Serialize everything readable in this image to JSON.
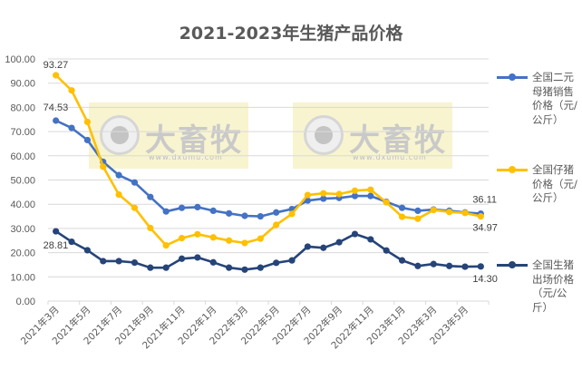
{
  "title": "2021-2023年生猪产品价格",
  "colors": {
    "sow": "#4472C4",
    "piglet": "#FFC000",
    "hog": "#264478",
    "grid": "#d9d9d9",
    "text": "#595959"
  },
  "watermark": {
    "brand": "大畜牧",
    "url": "www.dxumu.com"
  },
  "legend": [
    {
      "name": "全国二元母猪销售价格（元/公斤）",
      "color": "#4472C4"
    },
    {
      "name": "全国仔猪价格（元/公斤）",
      "color": "#FFC000"
    },
    {
      "name": "全国生猪出场价格（元/公斤）",
      "color": "#264478"
    }
  ],
  "chart_data": {
    "type": "line",
    "title": "2021-2023年生猪产品价格",
    "xlabel": "",
    "ylabel": "",
    "ylim": [
      0,
      100
    ],
    "yticks": [
      "0.00",
      "10.00",
      "20.00",
      "30.00",
      "40.00",
      "50.00",
      "60.00",
      "70.00",
      "80.00",
      "90.00",
      "100.00"
    ],
    "grid": true,
    "legend_position": "right",
    "x": [
      "2021年3月",
      "2021年4月",
      "2021年5月",
      "2021年6月",
      "2021年7月",
      "2021年8月",
      "2021年9月",
      "2021年10月",
      "2021年11月",
      "2021年12月",
      "2022年1月",
      "2022年2月",
      "2022年3月",
      "2022年4月",
      "2022年5月",
      "2022年6月",
      "2022年7月",
      "2022年8月",
      "2022年9月",
      "2022年10月",
      "2022年11月",
      "2022年12月",
      "2023年1月",
      "2023年2月",
      "2023年3月",
      "2023年4月",
      "2023年5月",
      "2023年6月"
    ],
    "xtick_labels": [
      "2021年3月",
      "2021年5月",
      "2021年7月",
      "2021年9月",
      "2021年11月",
      "2022年1月",
      "2022年3月",
      "2022年5月",
      "2022年7月",
      "2022年9月",
      "2022年11月",
      "2023年1月",
      "2023年3月",
      "2023年5月"
    ],
    "series": [
      {
        "name": "全国二元母猪销售价格（元/公斤）",
        "color": "#4472C4",
        "values": [
          74.53,
          71.5,
          66.5,
          57.5,
          52.0,
          49.0,
          43.0,
          37.0,
          38.5,
          38.8,
          37.3,
          36.2,
          35.2,
          35.0,
          36.6,
          38.0,
          41.5,
          42.3,
          42.6,
          43.4,
          43.4,
          41.0,
          38.5,
          37.3,
          37.8,
          37.3,
          36.6,
          36.11
        ],
        "labels": {
          "0": "74.53",
          "27": "36.11"
        }
      },
      {
        "name": "全国仔猪价格（元/公斤）",
        "color": "#FFC000",
        "values": [
          93.27,
          87.0,
          74.0,
          55.5,
          44.0,
          38.5,
          30.2,
          23.0,
          26.0,
          27.6,
          26.3,
          25.0,
          24.0,
          25.8,
          31.5,
          36.0,
          43.8,
          44.5,
          44.2,
          45.6,
          46.0,
          40.8,
          34.8,
          34.0,
          37.6,
          36.8,
          36.4,
          34.97
        ],
        "labels": {
          "0": "93.27",
          "27": "34.97"
        }
      },
      {
        "name": "全国生猪出场价格（元/公斤）",
        "color": "#264478",
        "values": [
          28.81,
          24.5,
          21.0,
          16.5,
          16.5,
          15.9,
          13.8,
          13.8,
          17.5,
          18.0,
          16.0,
          13.8,
          13.0,
          13.8,
          15.8,
          16.8,
          22.5,
          22.0,
          24.3,
          27.7,
          25.5,
          20.9,
          16.8,
          14.5,
          15.3,
          14.5,
          14.2,
          14.3
        ],
        "labels": {
          "0": "28.81",
          "27": "14.30"
        }
      }
    ]
  }
}
